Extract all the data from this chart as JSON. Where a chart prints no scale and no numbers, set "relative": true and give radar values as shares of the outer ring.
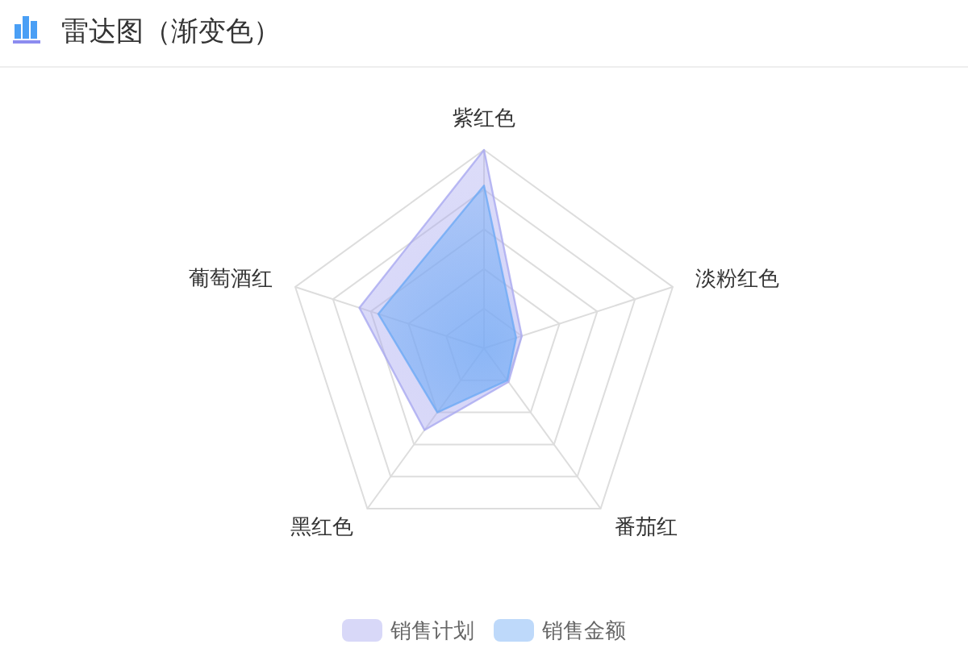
{
  "chart_data": {
    "type": "radar",
    "title": "雷达图（渐变色）",
    "categories": [
      "紫红色",
      "淡粉红色",
      "番茄红",
      "黑红色",
      "葡萄酒红"
    ],
    "relative": true,
    "grid": true,
    "legend": "bottom",
    "series": [
      {
        "name": "销售计划",
        "color": "#a9a9f0",
        "values": [
          1.0,
          0.2,
          0.21,
          0.51,
          0.66
        ]
      },
      {
        "name": "销售金额",
        "color": "#6eaaf5",
        "values": [
          0.82,
          0.17,
          0.2,
          0.4,
          0.56
        ]
      }
    ]
  }
}
